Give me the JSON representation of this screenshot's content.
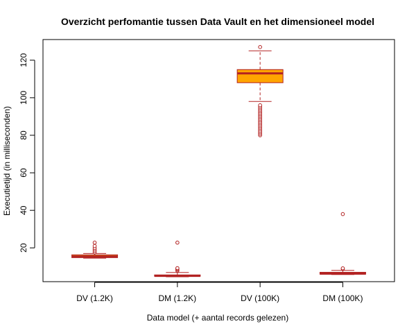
{
  "chart_data": {
    "type": "box",
    "title": "Overzicht perfomantie tussen Data Vault en het dimensioneel model",
    "xlabel": "Data model (+ aantal records gelezen)",
    "ylabel": "Executietijd (in milliseconden)",
    "categories": [
      "DV (1.2K)",
      "DM (1.2K)",
      "DV (100K)",
      "DM (100K)"
    ],
    "y_ticks": [
      20,
      40,
      60,
      80,
      100,
      120
    ],
    "ylim": [
      2,
      131
    ],
    "grid": false,
    "legend": "none",
    "colors": {
      "box_fill": "#FFA500",
      "box_line": "#B22222",
      "outlier": "#B22222"
    },
    "boxes": [
      {
        "category": "DV (1.2K)",
        "whisker_low": 14.5,
        "q1": 14.8,
        "median": 15.4,
        "q3": 16.3,
        "whisker_high": 17.0,
        "outliers": [
          17.6,
          18.4,
          19.2,
          20.0,
          21.0,
          22.8
        ]
      },
      {
        "category": "DM (1.2K)",
        "whisker_low": 4.6,
        "q1": 4.9,
        "median": 5.1,
        "q3": 5.6,
        "whisker_high": 6.9,
        "outliers": [
          7.8,
          8.3,
          8.8,
          9.2,
          22.8
        ]
      },
      {
        "category": "DV (100K)",
        "whisker_low": 98.0,
        "q1": 108.0,
        "median": 113.0,
        "q3": 115.0,
        "whisker_high": 125.0,
        "outliers": [
          80.0,
          80.8,
          81.6,
          82.4,
          83.2,
          84.0,
          84.8,
          85.6,
          86.4,
          87.2,
          88.0,
          88.8,
          89.6,
          90.4,
          91.2,
          92.0,
          92.8,
          93.6,
          94.4,
          95.2,
          96.0,
          127.0
        ]
      },
      {
        "category": "DM (100K)",
        "whisker_low": 5.8,
        "q1": 6.0,
        "median": 6.3,
        "q3": 7.0,
        "whisker_high": 8.0,
        "outliers": [
          8.8,
          9.1,
          38.0
        ]
      }
    ]
  }
}
